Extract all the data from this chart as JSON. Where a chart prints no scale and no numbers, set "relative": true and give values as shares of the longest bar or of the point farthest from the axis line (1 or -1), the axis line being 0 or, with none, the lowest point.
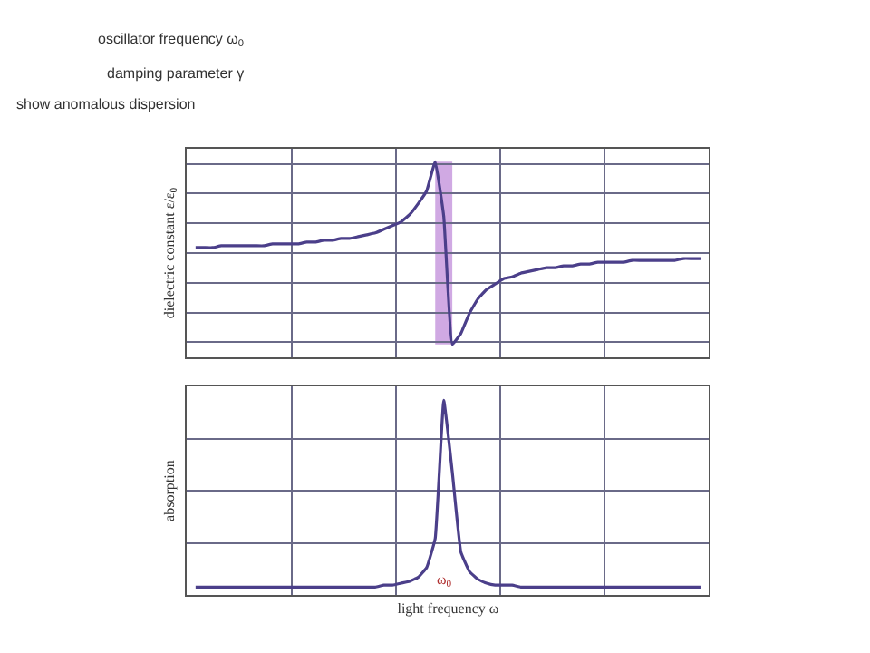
{
  "chart_data": [
    {
      "type": "other",
      "annotations": [
        "oscillator frequency ω$_{0}$",
        "damping parameter γ",
        "show anomalous dispersion"
      ]
    },
    {
      "type": "line",
      "relative": true,
      "ylabel": "dielectric constant ε/ε$_{0}$",
      "grid": true,
      "categories": [
        null,
        null,
        null,
        null,
        null,
        null,
        null,
        null,
        null,
        null,
        null,
        null,
        null,
        null,
        null,
        null,
        null,
        null,
        null,
        null,
        null,
        null,
        null,
        null,
        null,
        null,
        null,
        null,
        null,
        null,
        null,
        null,
        null,
        null,
        null,
        null,
        null,
        null,
        null,
        null,
        null,
        null,
        null,
        null,
        null,
        null,
        null,
        null,
        null,
        null,
        null,
        null,
        null,
        null,
        null,
        null,
        null,
        null,
        null,
        null
      ],
      "series": [
        {
          "color": "#4b3f8a",
          "values": [
            0.53,
            0.53,
            0.53,
            0.54,
            0.54,
            0.54,
            0.54,
            0.54,
            0.54,
            0.55,
            0.55,
            0.55,
            0.55,
            0.56,
            0.56,
            0.57,
            0.57,
            0.58,
            0.58,
            0.59,
            0.6,
            0.61,
            0.63,
            0.65,
            0.67,
            0.71,
            0.77,
            0.84,
            1.0,
            0.7,
            0.0,
            0.06,
            0.17,
            0.25,
            0.3,
            0.33,
            0.36,
            0.37,
            0.39,
            0.4,
            0.41,
            0.42,
            0.42,
            0.43,
            0.43,
            0.44,
            0.44,
            0.45,
            0.45,
            0.45,
            0.45,
            0.46,
            0.46,
            0.46,
            0.46,
            0.46,
            0.46,
            0.47,
            0.47,
            0.47
          ]
        }
      ]
    },
    {
      "type": "line",
      "relative": true,
      "ylabel": "absorption",
      "xlabel": "light frequency ω",
      "grid": true,
      "annotations": [
        "ω$_{0}$"
      ],
      "categories": [
        null,
        null,
        null,
        null,
        null,
        null,
        null,
        null,
        null,
        null,
        null,
        null,
        null,
        null,
        null,
        null,
        null,
        null,
        null,
        null,
        null,
        null,
        null,
        null,
        null,
        null,
        null,
        null,
        null,
        null,
        null,
        null,
        null,
        null,
        null,
        null,
        null,
        null,
        null,
        null,
        null,
        null,
        null,
        null,
        null,
        null,
        null,
        null,
        null,
        null,
        null,
        null,
        null,
        null,
        null,
        null,
        null,
        null,
        null,
        null
      ],
      "series": [
        {
          "color": "#4b3f8a",
          "values": [
            0.04,
            0.04,
            0.04,
            0.04,
            0.04,
            0.04,
            0.04,
            0.04,
            0.04,
            0.04,
            0.04,
            0.04,
            0.04,
            0.04,
            0.04,
            0.04,
            0.04,
            0.04,
            0.04,
            0.04,
            0.04,
            0.04,
            0.05,
            0.05,
            0.06,
            0.07,
            0.09,
            0.14,
            0.29,
            1.0,
            0.63,
            0.22,
            0.12,
            0.08,
            0.06,
            0.05,
            0.05,
            0.05,
            0.04,
            0.04,
            0.04,
            0.04,
            0.04,
            0.04,
            0.04,
            0.04,
            0.04,
            0.04,
            0.04,
            0.04,
            0.04,
            0.04,
            0.04,
            0.04,
            0.04,
            0.04,
            0.04,
            0.04,
            0.04,
            0.04
          ]
        }
      ]
    }
  ]
}
